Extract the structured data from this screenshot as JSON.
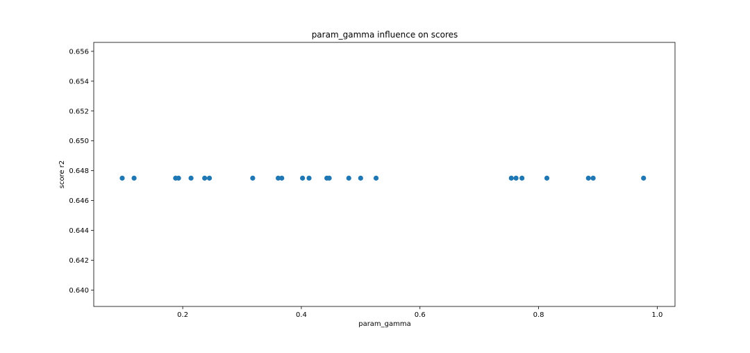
{
  "chart_data": {
    "type": "scatter",
    "title": "param_gamma influence on scores",
    "xlabel": "param_gamma",
    "ylabel": "score r2",
    "xlim": [
      0.05,
      1.03
    ],
    "ylim": [
      0.6389,
      0.6566
    ],
    "xticks": [
      0.2,
      0.4,
      0.6,
      0.8,
      1.0
    ],
    "xtick_labels": [
      "0.2",
      "0.4",
      "0.6",
      "0.8",
      "1.0"
    ],
    "yticks": [
      0.64,
      0.642,
      0.644,
      0.646,
      0.648,
      0.65,
      0.652,
      0.654,
      0.656
    ],
    "ytick_labels": [
      "0.640",
      "0.642",
      "0.644",
      "0.646",
      "0.648",
      "0.650",
      "0.652",
      "0.654",
      "0.656"
    ],
    "grid": false,
    "marker_color": "#1f77b4",
    "series": [
      {
        "x": [
          0.098,
          0.118,
          0.188,
          0.193,
          0.214,
          0.237,
          0.245,
          0.318,
          0.361,
          0.367,
          0.402,
          0.413,
          0.443,
          0.447,
          0.48,
          0.5,
          0.526,
          0.754,
          0.762,
          0.772,
          0.814,
          0.884,
          0.892,
          0.977
        ],
        "y": [
          0.6475,
          0.6475,
          0.6475,
          0.6475,
          0.6475,
          0.6475,
          0.6475,
          0.6475,
          0.6475,
          0.6475,
          0.6475,
          0.6475,
          0.6475,
          0.6475,
          0.6475,
          0.6475,
          0.6475,
          0.6475,
          0.6475,
          0.6475,
          0.6475,
          0.6475,
          0.6475,
          0.6475
        ]
      }
    ]
  }
}
